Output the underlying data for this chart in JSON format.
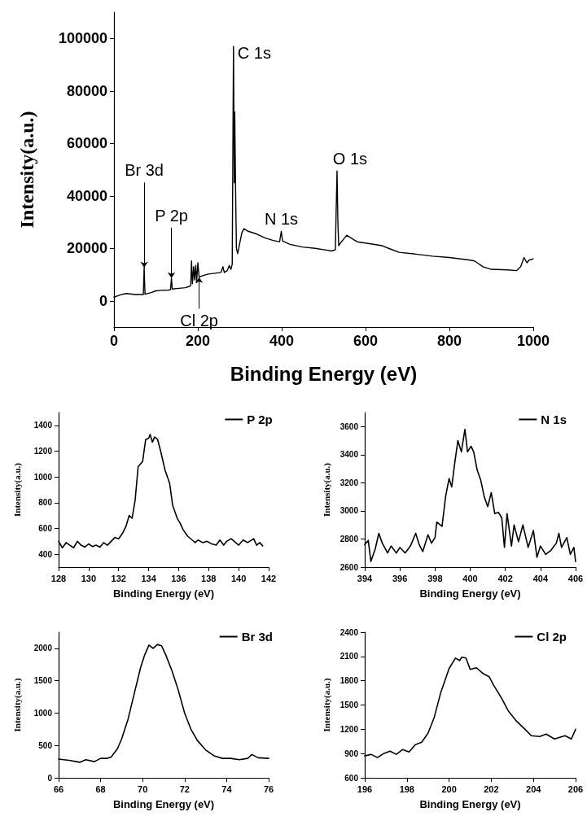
{
  "chart_data": [
    {
      "type": "line",
      "xlabel": "Binding Energy (eV)",
      "ylabel": "Intensity(a.u.)",
      "xlim": [
        0,
        1000
      ],
      "xticks": [
        0,
        200,
        400,
        600,
        800,
        1000
      ],
      "ylim": [
        -10000,
        110000
      ],
      "yticks": [
        0,
        20000,
        40000,
        60000,
        80000,
        100000
      ],
      "grid": false,
      "legend": false,
      "marker": "none",
      "line_style": "solid",
      "x": [
        0,
        10,
        20,
        30,
        50,
        70,
        72,
        74,
        76,
        90,
        100,
        110,
        130,
        135,
        137,
        139,
        150,
        170,
        180,
        183,
        185,
        187,
        190,
        192,
        195,
        197,
        200,
        203,
        210,
        225,
        240,
        255,
        260,
        263,
        270,
        275,
        279,
        282,
        285,
        287,
        288,
        290,
        292,
        295,
        300,
        305,
        310,
        320,
        340,
        360,
        380,
        395,
        399,
        402,
        420,
        450,
        480,
        500,
        520,
        528,
        530,
        532,
        534,
        536,
        540,
        550,
        555,
        565,
        580,
        600,
        640,
        655,
        680,
        720,
        760,
        800,
        850,
        860,
        880,
        900,
        940,
        960,
        970,
        978,
        985,
        990,
        1000
      ],
      "series": [
        {
          "color": "#000000",
          "values": [
            1400,
            2000,
            2500,
            2800,
            2400,
            2400,
            12700,
            2500,
            2600,
            3200,
            3800,
            4000,
            4100,
            4300,
            8700,
            4500,
            4700,
            5000,
            5500,
            5800,
            15200,
            6500,
            13000,
            8000,
            13500,
            7000,
            14500,
            9000,
            9500,
            10200,
            10500,
            10800,
            13000,
            10800,
            11500,
            13500,
            12000,
            14000,
            97000,
            45000,
            72000,
            43000,
            20000,
            18000,
            22000,
            26000,
            27500,
            26500,
            25500,
            24000,
            23000,
            22500,
            26500,
            22800,
            21500,
            20500,
            20000,
            19500,
            19000,
            19500,
            35000,
            49500,
            30000,
            21000,
            22000,
            24000,
            25000,
            24000,
            22500,
            22000,
            21000,
            20000,
            18500,
            17800,
            17000,
            16500,
            15500,
            15200,
            13000,
            12000,
            11800,
            11500,
            13000,
            16500,
            14500,
            15500,
            16000
          ]
        }
      ],
      "annotations": [
        {
          "text": "C 1s",
          "x": 285,
          "y": 97000
        },
        {
          "text": "O 1s",
          "x": 532,
          "y": 49500
        },
        {
          "text": "N 1s",
          "x": 399,
          "y": 26500
        },
        {
          "text": "Br 3d",
          "x": 72,
          "y": 12700
        },
        {
          "text": "P 2p",
          "x": 137,
          "y": 8700
        },
        {
          "text": "Cl 2p",
          "x": 203,
          "y": 9000
        }
      ]
    },
    {
      "type": "line",
      "xlabel": "Binding Energy (eV)",
      "ylabel": "Intensity(a.u.)",
      "xlim": [
        128,
        142
      ],
      "xticks": [
        128,
        130,
        132,
        134,
        136,
        138,
        140,
        142
      ],
      "ylim": [
        300,
        1500
      ],
      "yticks": [
        400,
        600,
        800,
        1000,
        1200,
        1400
      ],
      "grid": false,
      "legend": "top right",
      "marker": "none",
      "line_style": "solid",
      "x": [
        128,
        128.25,
        128.5,
        128.75,
        129,
        129.25,
        129.5,
        129.75,
        130,
        130.25,
        130.5,
        130.75,
        131,
        131.25,
        131.5,
        131.75,
        132,
        132.25,
        132.5,
        132.7,
        132.9,
        133.1,
        133.3,
        133.6,
        133.8,
        134,
        134.1,
        134.25,
        134.4,
        134.6,
        134.8,
        135.1,
        135.4,
        135.6,
        135.9,
        136.1,
        136.3,
        136.6,
        136.9,
        137.1,
        137.3,
        137.6,
        137.9,
        138.2,
        138.5,
        138.75,
        139,
        139.2,
        139.5,
        139.8,
        140,
        140.3,
        140.6,
        141,
        141.2,
        141.4,
        141.6
      ],
      "series": [
        {
          "name": "P 2p",
          "color": "#000000",
          "values": [
            500,
            450,
            490,
            470,
            450,
            500,
            470,
            455,
            480,
            460,
            470,
            455,
            490,
            470,
            500,
            530,
            520,
            560,
            620,
            700,
            680,
            820,
            1080,
            1120,
            1290,
            1300,
            1330,
            1270,
            1310,
            1290,
            1200,
            1050,
            950,
            780,
            680,
            640,
            590,
            540,
            510,
            490,
            510,
            490,
            500,
            480,
            470,
            510,
            470,
            500,
            520,
            490,
            470,
            510,
            490,
            520,
            470,
            490,
            465
          ]
        }
      ]
    },
    {
      "type": "line",
      "xlabel": "Binding Energy (eV)",
      "ylabel": "Intensity(a.u.)",
      "xlim": [
        394,
        406
      ],
      "xticks": [
        394,
        396,
        398,
        400,
        402,
        404,
        406
      ],
      "ylim": [
        2600,
        3700
      ],
      "yticks": [
        2600,
        2800,
        3000,
        3200,
        3400,
        3600
      ],
      "grid": false,
      "legend": "top right",
      "marker": "none",
      "line_style": "solid",
      "x": [
        394,
        394.2,
        394.35,
        394.6,
        394.8,
        395,
        395.3,
        395.5,
        395.8,
        396,
        396.3,
        396.6,
        396.9,
        397.1,
        397.3,
        397.6,
        397.8,
        398,
        398.1,
        398.4,
        398.6,
        398.8,
        398.95,
        399.1,
        399.3,
        399.5,
        399.7,
        399.85,
        400.05,
        400.2,
        400.4,
        400.6,
        400.8,
        401,
        401.2,
        401.4,
        401.6,
        401.8,
        401.95,
        402.1,
        402.35,
        402.5,
        402.75,
        403,
        403.3,
        403.6,
        403.8,
        404,
        404.3,
        404.6,
        404.9,
        405.05,
        405.2,
        405.5,
        405.7,
        405.9,
        406
      ],
      "series": [
        {
          "name": "N 1s",
          "color": "#000000",
          "values": [
            2760,
            2790,
            2640,
            2730,
            2840,
            2770,
            2700,
            2750,
            2700,
            2740,
            2700,
            2750,
            2840,
            2760,
            2710,
            2830,
            2770,
            2810,
            2920,
            2890,
            3100,
            3230,
            3170,
            3320,
            3500,
            3420,
            3580,
            3420,
            3460,
            3420,
            3290,
            3220,
            3100,
            3030,
            3130,
            2980,
            2990,
            2950,
            2740,
            2980,
            2750,
            2900,
            2780,
            2900,
            2740,
            2860,
            2670,
            2750,
            2690,
            2720,
            2770,
            2840,
            2740,
            2810,
            2690,
            2740,
            2640
          ]
        }
      ]
    },
    {
      "type": "line",
      "xlabel": "Binding Energy (eV)",
      "ylabel": "Intensity(a.u.)",
      "xlim": [
        66,
        76
      ],
      "xticks": [
        66,
        68,
        70,
        72,
        74,
        76
      ],
      "ylim": [
        0,
        2250
      ],
      "yticks": [
        0,
        500,
        1000,
        1500,
        2000
      ],
      "grid": false,
      "legend": "top right",
      "marker": "none",
      "line_style": "solid",
      "x": [
        66,
        66.5,
        67,
        67.3,
        67.7,
        68,
        68.3,
        68.5,
        68.8,
        69,
        69.3,
        69.6,
        69.9,
        70.1,
        70.3,
        70.5,
        70.7,
        70.9,
        71.1,
        71.4,
        71.7,
        72,
        72.3,
        72.6,
        73,
        73.4,
        73.8,
        74.2,
        74.6,
        75,
        75.2,
        75.5,
        76
      ],
      "series": [
        {
          "name": "Br 3d",
          "color": "#000000",
          "values": [
            290,
            270,
            240,
            280,
            250,
            300,
            300,
            320,
            450,
            600,
            900,
            1300,
            1700,
            1900,
            2050,
            2000,
            2060,
            2040,
            1900,
            1650,
            1350,
            1000,
            750,
            580,
            430,
            340,
            300,
            300,
            280,
            300,
            360,
            310,
            300
          ]
        }
      ]
    },
    {
      "type": "line",
      "xlabel": "Binding Energy (eV)",
      "ylabel": "Intensity(a.u.)",
      "xlim": [
        196,
        206
      ],
      "xticks": [
        196,
        198,
        200,
        202,
        204,
        206
      ],
      "ylim": [
        600,
        2400
      ],
      "yticks": [
        600,
        900,
        1200,
        1500,
        1800,
        2100,
        2400
      ],
      "grid": false,
      "legend": "top right",
      "marker": "none",
      "line_style": "solid",
      "x": [
        196,
        196.3,
        196.6,
        196.9,
        197.2,
        197.5,
        197.8,
        198.1,
        198.4,
        198.7,
        199,
        199.3,
        199.6,
        199.8,
        200,
        200.3,
        200.5,
        200.6,
        200.8,
        201,
        201.3,
        201.6,
        201.9,
        202.1,
        202.5,
        202.8,
        203.2,
        203.6,
        203.9,
        204.3,
        204.6,
        205,
        205.5,
        205.8,
        206
      ],
      "series": [
        {
          "name": "Cl 2p",
          "color": "#000000",
          "values": [
            870,
            890,
            850,
            900,
            930,
            890,
            950,
            920,
            1010,
            1040,
            1150,
            1350,
            1650,
            1800,
            1950,
            2080,
            2050,
            2090,
            2080,
            1940,
            1960,
            1890,
            1850,
            1750,
            1580,
            1430,
            1300,
            1200,
            1120,
            1110,
            1140,
            1080,
            1120,
            1080,
            1200
          ]
        }
      ]
    }
  ]
}
